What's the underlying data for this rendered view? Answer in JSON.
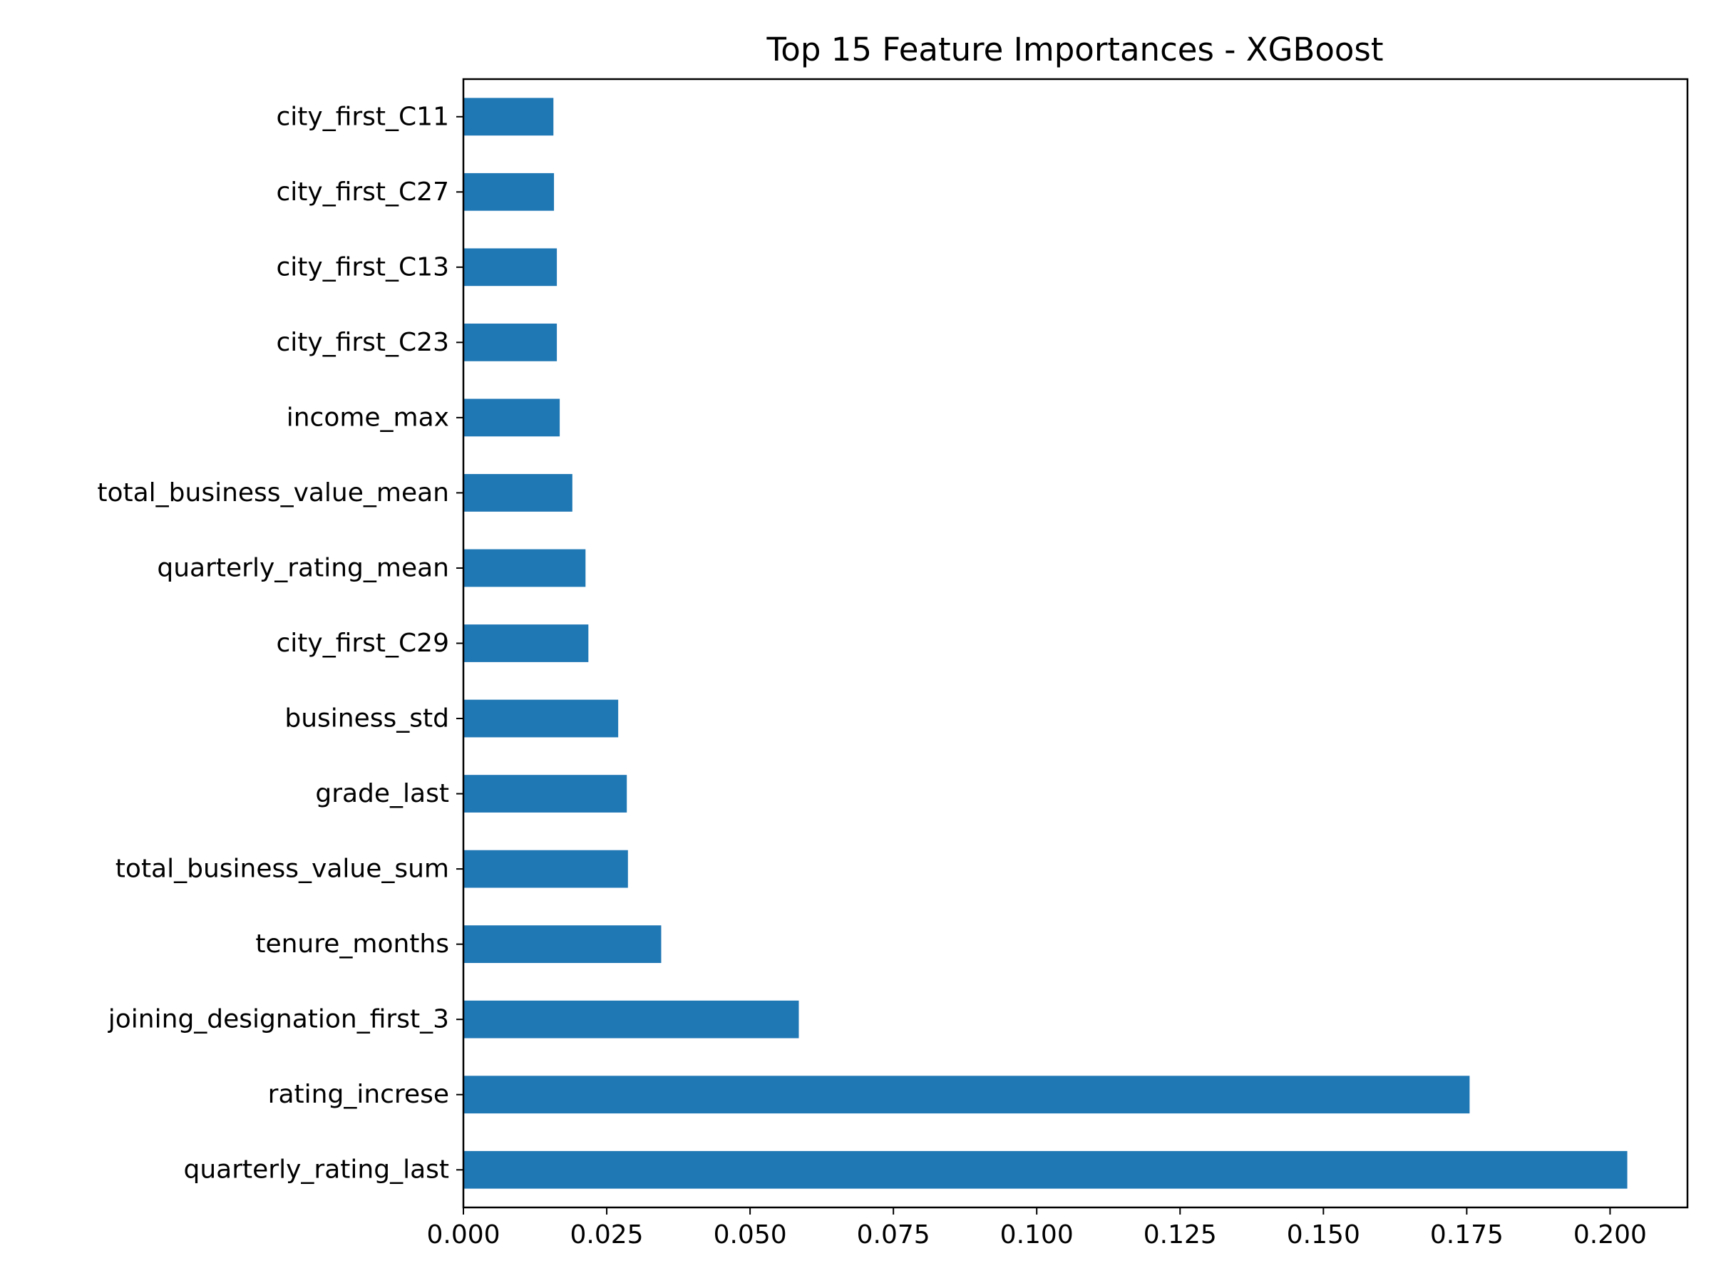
{
  "chart_data": {
    "type": "bar",
    "orientation": "horizontal",
    "title": "Top 15 Feature Importances - XGBoost",
    "xlabel": "",
    "ylabel": "",
    "xlim": [
      0,
      0.2135
    ],
    "grid": false,
    "legend": "none",
    "bar_color": "#1f77b4",
    "x_ticks": [
      "0.000",
      "0.025",
      "0.050",
      "0.075",
      "0.100",
      "0.125",
      "0.150",
      "0.175",
      "0.200"
    ],
    "categories": [
      "quarterly_rating_last",
      "rating_increse",
      "joining_designation_first_3",
      "tenure_months",
      "total_business_value_sum",
      "grade_last",
      "business_std",
      "city_first_C29",
      "quarterly_rating_mean",
      "total_business_value_mean",
      "income_max",
      "city_first_C23",
      "city_first_C13",
      "city_first_C27",
      "city_first_C11"
    ],
    "values": [
      0.203,
      0.1755,
      0.0585,
      0.0345,
      0.0287,
      0.0285,
      0.027,
      0.0218,
      0.0213,
      0.019,
      0.0168,
      0.0163,
      0.0163,
      0.0158,
      0.0157
    ]
  }
}
